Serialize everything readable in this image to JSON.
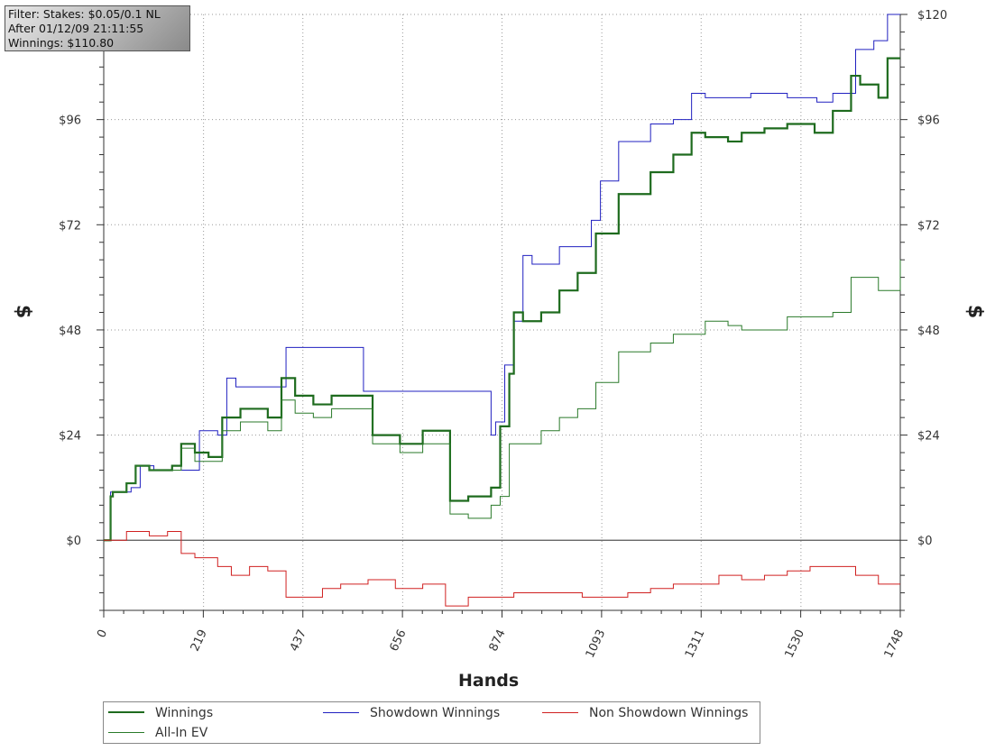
{
  "filter_box": {
    "lines": [
      "Filter: Stakes: $0.05/0.1 NL",
      "After 01/12/09 21:11:55",
      "Winnings: $110.80"
    ]
  },
  "legend": {
    "items": [
      {
        "label": "Winnings",
        "color": "#1e6b1e"
      },
      {
        "label": "Showdown Winnings",
        "color": "#2020c0"
      },
      {
        "label": "Non Showdown Winnings",
        "color": "#d02020"
      },
      {
        "label": "All-In EV",
        "color": "#2a7a2a"
      }
    ]
  },
  "chart_data": {
    "type": "line",
    "xlabel": "Hands",
    "ylabel": "$",
    "xlim": [
      0,
      1748
    ],
    "ylim": [
      -16,
      120
    ],
    "x_ticks": [
      "0",
      "219",
      "437",
      "656",
      "874",
      "1093",
      "1311",
      "1530",
      "1748"
    ],
    "y_ticks": [
      "$0",
      "$24",
      "$48",
      "$72",
      "$96",
      "$120"
    ],
    "y_tick_values": [
      0,
      24,
      48,
      72,
      96,
      120
    ],
    "x_tick_values": [
      0,
      219,
      437,
      656,
      874,
      1093,
      1311,
      1530,
      1748
    ],
    "grid": true,
    "legend_position": "bottom",
    "series": [
      {
        "name": "Showdown Winnings",
        "color": "#2020c0",
        "x": [
          0,
          15,
          20,
          60,
          80,
          110,
          180,
          210,
          250,
          270,
          290,
          390,
          400,
          550,
          570,
          760,
          850,
          860,
          880,
          900,
          920,
          940,
          1000,
          1070,
          1090,
          1130,
          1200,
          1250,
          1290,
          1320,
          1380,
          1420,
          1480,
          1500,
          1550,
          1565,
          1600,
          1650,
          1690,
          1720,
          1748
        ],
        "y": [
          0,
          11,
          11,
          12,
          17,
          16,
          16,
          25,
          24,
          37,
          35,
          35,
          44,
          44,
          34,
          34,
          24,
          27,
          40,
          50,
          65,
          63,
          67,
          73,
          82,
          91,
          95,
          96,
          102,
          101,
          101,
          102,
          102,
          101,
          101,
          100,
          102,
          112,
          114,
          120,
          120
        ]
      },
      {
        "name": "Winnings",
        "color": "#1e6b1e",
        "x": [
          0,
          15,
          20,
          50,
          70,
          100,
          150,
          170,
          200,
          230,
          260,
          300,
          360,
          390,
          420,
          460,
          500,
          560,
          590,
          650,
          700,
          760,
          800,
          850,
          870,
          890,
          900,
          920,
          960,
          1000,
          1040,
          1080,
          1130,
          1200,
          1250,
          1290,
          1320,
          1370,
          1400,
          1450,
          1500,
          1560,
          1600,
          1640,
          1660,
          1700,
          1720,
          1748
        ],
        "y": [
          0,
          10,
          11,
          13,
          17,
          16,
          17,
          22,
          20,
          19,
          28,
          30,
          28,
          37,
          33,
          31,
          33,
          33,
          24,
          22,
          25,
          9,
          10,
          12,
          26,
          38,
          52,
          50,
          52,
          57,
          61,
          70,
          79,
          84,
          88,
          93,
          92,
          91,
          93,
          94,
          95,
          93,
          98,
          106,
          104,
          101,
          110,
          110
        ]
      },
      {
        "name": "All-In EV",
        "color": "#2a7a2a",
        "x": [
          0,
          15,
          20,
          50,
          70,
          100,
          150,
          170,
          200,
          230,
          260,
          300,
          360,
          390,
          420,
          460,
          500,
          560,
          590,
          650,
          700,
          760,
          800,
          850,
          870,
          890,
          930,
          960,
          1000,
          1040,
          1080,
          1130,
          1200,
          1250,
          1290,
          1320,
          1370,
          1400,
          1450,
          1500,
          1560,
          1600,
          1640,
          1660,
          1700,
          1720,
          1748
        ],
        "y": [
          0,
          10,
          11,
          13,
          17,
          16,
          16,
          21,
          18,
          18,
          25,
          27,
          25,
          32,
          29,
          28,
          30,
          30,
          22,
          20,
          22,
          6,
          5,
          8,
          10,
          22,
          22,
          25,
          28,
          30,
          36,
          43,
          45,
          47,
          47,
          50,
          49,
          48,
          48,
          51,
          51,
          52,
          60,
          60,
          57,
          57,
          64
        ]
      },
      {
        "name": "Non Showdown Winnings",
        "color": "#d02020",
        "x": [
          0,
          20,
          50,
          100,
          140,
          170,
          200,
          250,
          280,
          320,
          360,
          400,
          440,
          480,
          520,
          580,
          640,
          700,
          750,
          800,
          850,
          900,
          950,
          1000,
          1050,
          1100,
          1150,
          1200,
          1250,
          1300,
          1350,
          1400,
          1450,
          1500,
          1550,
          1600,
          1650,
          1700,
          1748
        ],
        "y": [
          0,
          0,
          2,
          1,
          2,
          -3,
          -4,
          -6,
          -8,
          -6,
          -7,
          -13,
          -13,
          -11,
          -10,
          -9,
          -11,
          -10,
          -15,
          -13,
          -13,
          -12,
          -12,
          -12,
          -13,
          -13,
          -12,
          -11,
          -10,
          -10,
          -8,
          -9,
          -8,
          -7,
          -6,
          -6,
          -8,
          -10,
          -10
        ]
      }
    ]
  }
}
